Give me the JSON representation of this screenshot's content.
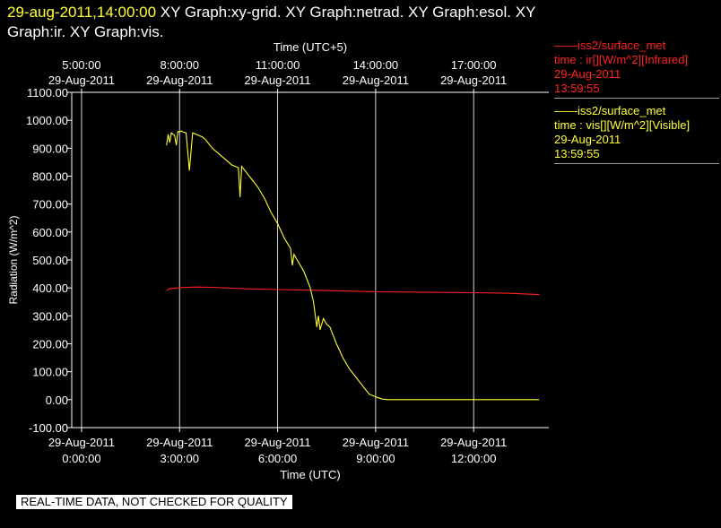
{
  "header": {
    "timestamp": "29-aug-2011,14:00:00",
    "titles": "XY Graph:xy-grid.  XY Graph:netrad.  XY Graph:esol.  XY Graph:ir.  XY Graph:vis."
  },
  "legend": [
    {
      "label": "iss2/surface_met",
      "field": "time : ir[][W/m^2][Infrared]",
      "date": "29-Aug-2011",
      "time": "13:59:55",
      "color": "#ff2020"
    },
    {
      "label": "iss2/surface_met",
      "field": "time : vis[][W/m^2][Visible]",
      "date": "29-Aug-2011",
      "time": "13:59:55",
      "color": "#ffff33"
    }
  ],
  "banner": "REAL-TIME DATA, NOT CHECKED FOR QUALITY",
  "chart_data": {
    "type": "line",
    "xlabel": "Time (UTC)",
    "x2label": "Time (UTC+5)",
    "ylabel": "Radiation (W/m^2)",
    "xlim": [
      -0.3,
      14.3
    ],
    "ylim": [
      -100,
      1100
    ],
    "yticks": [
      "1100.00",
      "1000.00",
      "900.00",
      "800.00",
      "700.00",
      "600.00",
      "500.00",
      "400.00",
      "300.00",
      "200.00",
      "100.00",
      "0.00",
      "-100.00"
    ],
    "xticks": [
      {
        "x": 0,
        "date": "29-Aug-2011",
        "time": "0:00:00"
      },
      {
        "x": 3,
        "date": "29-Aug-2011",
        "time": "3:00:00"
      },
      {
        "x": 6,
        "date": "29-Aug-2011",
        "time": "6:00:00"
      },
      {
        "x": 9,
        "date": "29-Aug-2011",
        "time": "9:00:00"
      },
      {
        "x": 12,
        "date": "29-Aug-2011",
        "time": "12:00:00"
      }
    ],
    "x2ticks": [
      {
        "x": 0,
        "date": "29-Aug-2011",
        "time": "5:00:00"
      },
      {
        "x": 3,
        "date": "29-Aug-2011",
        "time": "8:00:00"
      },
      {
        "x": 6,
        "date": "29-Aug-2011",
        "time": "11:00:00"
      },
      {
        "x": 9,
        "date": "29-Aug-2011",
        "time": "14:00:00"
      },
      {
        "x": 12,
        "date": "29-Aug-2011",
        "time": "17:00:00"
      }
    ],
    "grid": true,
    "series": [
      {
        "name": "iss2/surface_met time : ir[][W/m^2][Infrared]",
        "color": "#ff2020",
        "x": [
          2.6,
          2.7,
          3.0,
          3.5,
          4.0,
          5.0,
          6.0,
          7.0,
          8.0,
          9.0,
          10.0,
          11.0,
          12.0,
          13.0,
          14.0
        ],
        "y": [
          390,
          398,
          401,
          403,
          402,
          397,
          394,
          392,
          389,
          386,
          385,
          384,
          383,
          381,
          376
        ]
      },
      {
        "name": "iss2/surface_met time : vis[][W/m^2][Visible]",
        "color": "#ffff33",
        "x": [
          2.6,
          2.65,
          2.7,
          2.75,
          2.85,
          2.9,
          2.95,
          3.0,
          3.05,
          3.1,
          3.2,
          3.3,
          3.4,
          3.5,
          3.6,
          3.7,
          3.8,
          3.9,
          4.0,
          4.2,
          4.4,
          4.6,
          4.8,
          4.85,
          4.9,
          5.0,
          5.2,
          5.4,
          5.6,
          5.8,
          6.0,
          6.2,
          6.4,
          6.45,
          6.5,
          6.6,
          6.8,
          7.0,
          7.1,
          7.2,
          7.25,
          7.3,
          7.4,
          7.5,
          7.6,
          7.7,
          7.8,
          8.0,
          8.2,
          8.4,
          8.6,
          8.8,
          9.0,
          9.2,
          9.4,
          9.6,
          10.0,
          11.0,
          12.0,
          13.0,
          14.0
        ],
        "y": [
          910,
          950,
          920,
          955,
          945,
          910,
          960,
          958,
          962,
          958,
          955,
          820,
          955,
          950,
          945,
          940,
          930,
          915,
          900,
          880,
          860,
          840,
          830,
          725,
          835,
          820,
          790,
          760,
          720,
          670,
          630,
          580,
          540,
          480,
          520,
          500,
          460,
          400,
          350,
          260,
          300,
          250,
          290,
          270,
          260,
          230,
          200,
          150,
          110,
          80,
          50,
          20,
          10,
          2,
          0,
          0,
          0,
          0,
          0,
          0,
          0
        ]
      }
    ]
  }
}
